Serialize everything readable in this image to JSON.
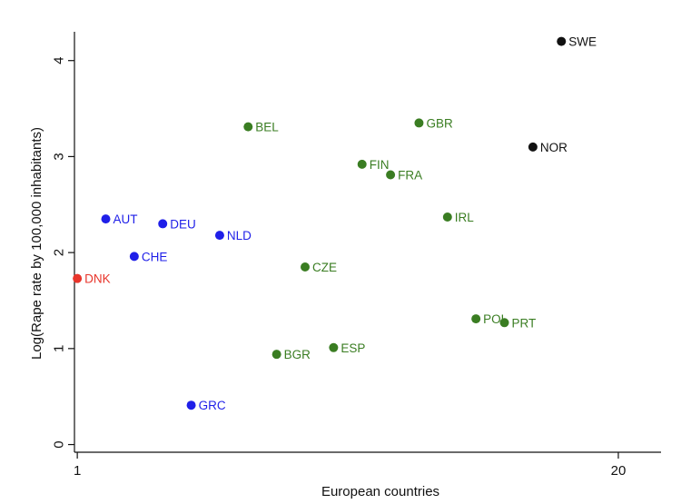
{
  "chart_data": {
    "type": "scatter",
    "title": "",
    "xlabel": "European countries",
    "ylabel": "Log(Rape rate by 100,000 inhabitants)",
    "x_ticks": [
      {
        "value": 1,
        "label": "1"
      },
      {
        "value": 20,
        "label": "20"
      }
    ],
    "y_ticks": [
      {
        "value": 0,
        "label": "0"
      },
      {
        "value": 1,
        "label": "1"
      },
      {
        "value": 2,
        "label": "2"
      },
      {
        "value": 3,
        "label": "3"
      },
      {
        "value": 4,
        "label": "4"
      }
    ],
    "xlim": [
      0.9,
      21.5
    ],
    "ylim": [
      -0.08,
      4.3
    ],
    "grid": false,
    "legend": "none",
    "colors": {
      "red": "#e8352b",
      "blue": "#1f1fe8",
      "green": "#3a7d22",
      "black": "#111111"
    },
    "points": [
      {
        "label": "DNK",
        "x": 1,
        "y": 1.73,
        "color": "red"
      },
      {
        "label": "AUT",
        "x": 2,
        "y": 2.35,
        "color": "blue"
      },
      {
        "label": "CHE",
        "x": 3,
        "y": 1.96,
        "color": "blue"
      },
      {
        "label": "DEU",
        "x": 4,
        "y": 2.3,
        "color": "blue"
      },
      {
        "label": "GRC",
        "x": 5,
        "y": 0.41,
        "color": "blue"
      },
      {
        "label": "NLD",
        "x": 6,
        "y": 2.18,
        "color": "blue"
      },
      {
        "label": "BEL",
        "x": 7,
        "y": 3.31,
        "color": "green"
      },
      {
        "label": "BGR",
        "x": 8,
        "y": 0.94,
        "color": "green"
      },
      {
        "label": "CZE",
        "x": 9,
        "y": 1.85,
        "color": "green"
      },
      {
        "label": "ESP",
        "x": 10,
        "y": 1.01,
        "color": "green"
      },
      {
        "label": "FIN",
        "x": 11,
        "y": 2.92,
        "color": "green"
      },
      {
        "label": "FRA",
        "x": 12,
        "y": 2.81,
        "color": "green"
      },
      {
        "label": "GBR",
        "x": 13,
        "y": 3.35,
        "color": "green"
      },
      {
        "label": "IRL",
        "x": 14,
        "y": 2.37,
        "color": "green"
      },
      {
        "label": "POL",
        "x": 15,
        "y": 1.31,
        "color": "green"
      },
      {
        "label": "PRT",
        "x": 16,
        "y": 1.27,
        "color": "green"
      },
      {
        "label": "NOR",
        "x": 17,
        "y": 3.1,
        "color": "black"
      },
      {
        "label": "SWE",
        "x": 18,
        "y": 4.2,
        "color": "black"
      }
    ]
  }
}
